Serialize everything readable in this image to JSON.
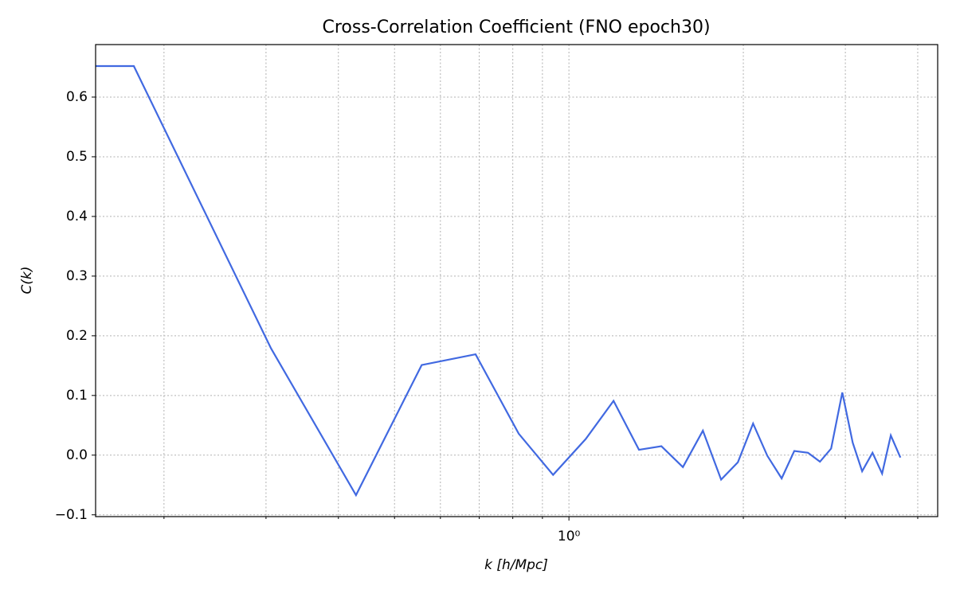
{
  "chart_data": {
    "type": "line",
    "title": "Cross-Correlation Coefficient (FNO epoch30)",
    "xlabel": "k [h/Mpc]",
    "ylabel": "C(k)",
    "xscale": "log",
    "grid": true,
    "color": "#4169e1",
    "x": [
      0.1524,
      0.1774,
      0.306,
      0.429,
      0.557,
      0.69,
      0.819,
      0.939,
      1.069,
      1.194,
      1.321,
      1.444,
      1.573,
      1.703,
      1.831,
      1.957,
      2.079,
      2.2,
      2.329,
      2.449,
      2.586,
      2.712,
      2.835,
      2.964,
      3.089,
      3.207,
      3.342,
      3.472,
      3.594,
      3.734
    ],
    "values": [
      0.652,
      0.652,
      0.179,
      -0.067,
      0.151,
      0.169,
      0.036,
      -0.033,
      0.027,
      0.091,
      0.009,
      0.015,
      -0.02,
      0.041,
      -0.041,
      -0.012,
      0.053,
      -0.001,
      -0.039,
      0.007,
      0.004,
      -0.011,
      0.011,
      0.105,
      0.021,
      -0.027,
      0.004,
      -0.031,
      0.033,
      -0.004
    ],
    "xlim": [
      0.1524,
      4.33
    ],
    "ylim": [
      -0.103,
      0.688
    ],
    "xticks": [
      {
        "value": 1,
        "label": "10⁰"
      }
    ],
    "xticks_minor": [
      0.2,
      0.3,
      0.4,
      0.5,
      0.6,
      0.7,
      0.8,
      0.9,
      2,
      3,
      4
    ],
    "yticks": [
      {
        "value": -0.1,
        "label": "−0.1"
      },
      {
        "value": 0,
        "label": "0.0"
      },
      0.1,
      0.2,
      0.3,
      0.4,
      0.5,
      0.6
    ]
  }
}
